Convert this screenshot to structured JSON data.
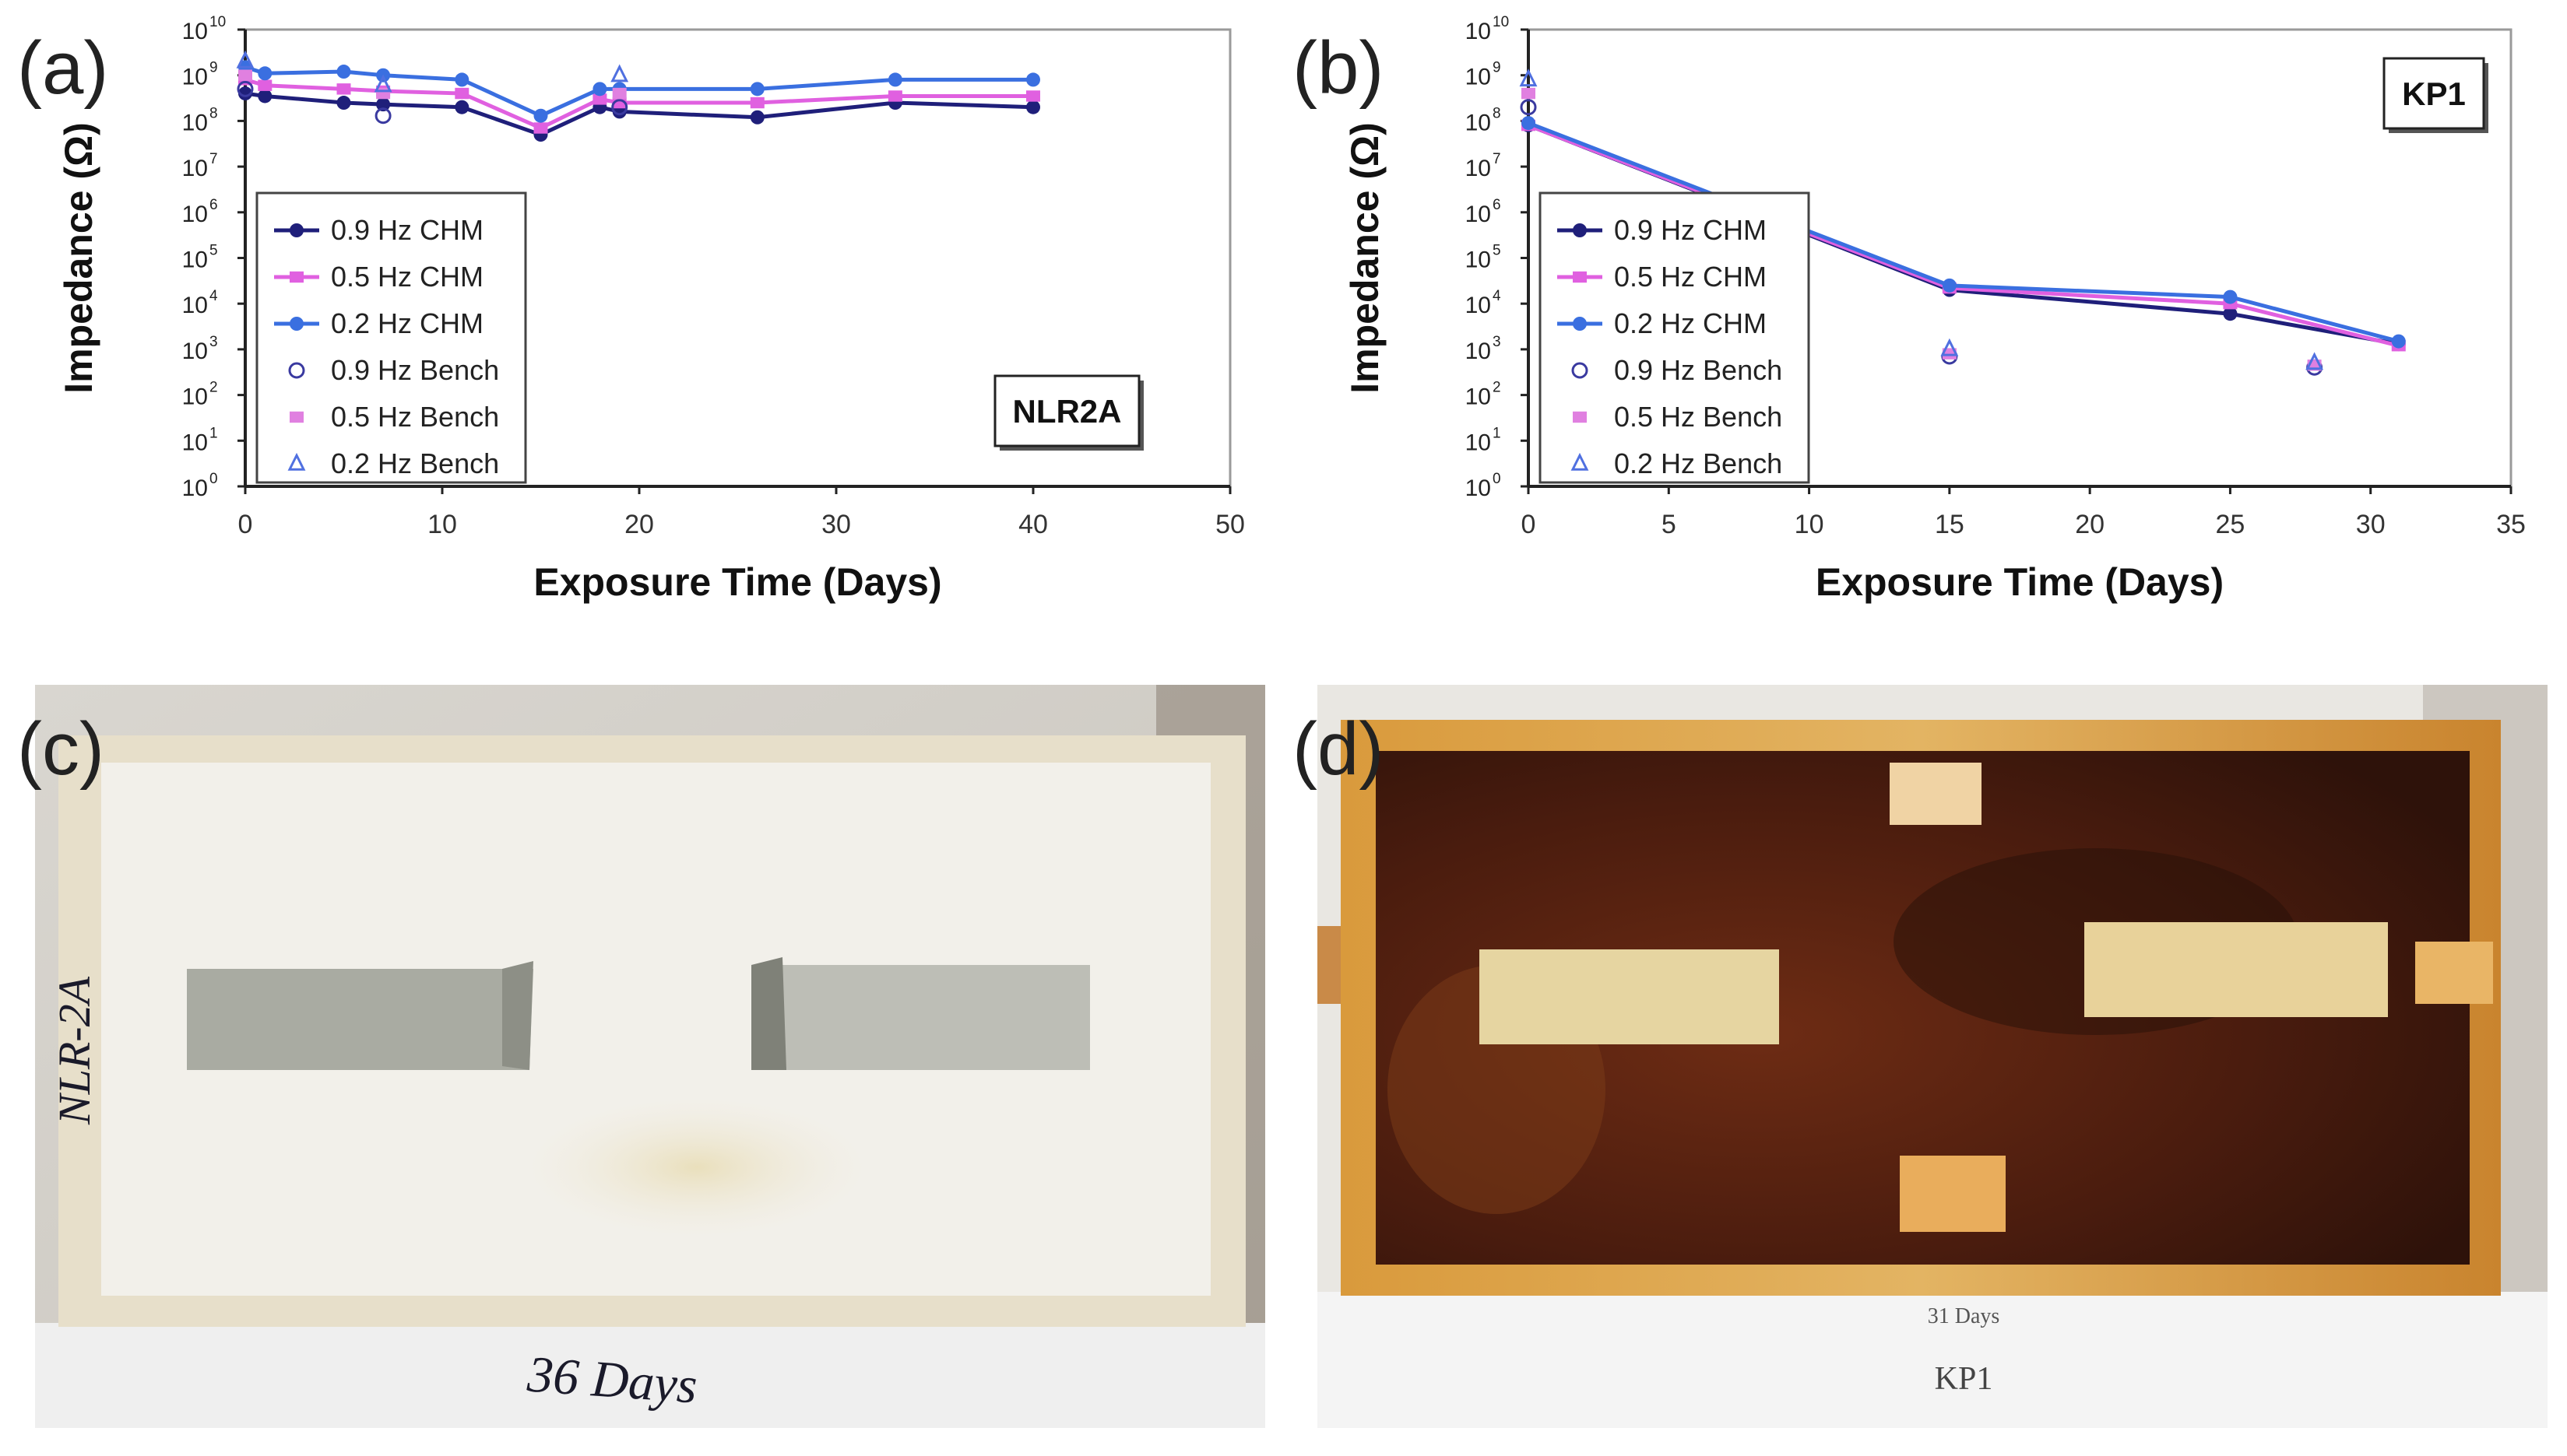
{
  "panels": {
    "a": "(a)",
    "b": "(b)",
    "c": "(c)",
    "d": "(d)"
  },
  "chart_data": [
    {
      "type": "line",
      "panel": "(a)",
      "title": "NLR2A",
      "xlabel": "Exposure Time (Days)",
      "ylabel": "Impedance (Ω)",
      "xlim": [
        0,
        50
      ],
      "xticks": [
        "0",
        "10",
        "20",
        "30",
        "40",
        "50"
      ],
      "ylim_log10": [
        0,
        10
      ],
      "yscale": "log",
      "yticks": [
        "10",
        "10",
        "10",
        "10",
        "10",
        "10",
        "10",
        "10",
        "10",
        "10",
        "10"
      ],
      "ytick_exponents": [
        "0",
        "1",
        "2",
        "3",
        "4",
        "5",
        "6",
        "7",
        "8",
        "9",
        "10"
      ],
      "legend": [
        "0.9 Hz CHM",
        "0.5 Hz CHM",
        "0.2 Hz CHM",
        "0.9 Hz Bench",
        "0.5 Hz Bench",
        "0.2 Hz Bench"
      ],
      "legend_position": "left",
      "series": [
        {
          "name": "0.9 Hz CHM",
          "marker": "dot",
          "color": "#1f1f7a",
          "kind": "line",
          "x": [
            0,
            1,
            5,
            7,
            11,
            15,
            18,
            19,
            26,
            33,
            40
          ],
          "y": [
            400000000.0,
            350000000.0,
            250000000.0,
            230000000.0,
            200000000.0,
            50000000.0,
            200000000.0,
            160000000.0,
            120000000.0,
            250000000.0,
            200000000.0
          ]
        },
        {
          "name": "0.5 Hz CHM",
          "marker": "square",
          "color": "#e060e0",
          "kind": "line",
          "x": [
            0,
            1,
            5,
            7,
            11,
            15,
            18,
            19,
            26,
            33,
            40
          ],
          "y": [
            800000000.0,
            600000000.0,
            500000000.0,
            450000000.0,
            400000000.0,
            70000000.0,
            300000000.0,
            250000000.0,
            250000000.0,
            350000000.0,
            350000000.0
          ]
        },
        {
          "name": "0.2 Hz CHM",
          "marker": "dot",
          "color": "#3a6fe0",
          "kind": "line",
          "x": [
            0,
            1,
            5,
            7,
            11,
            15,
            18,
            19,
            26,
            33,
            40
          ],
          "y": [
            1500000000.0,
            1100000000.0,
            1200000000.0,
            1000000000.0,
            800000000.0,
            130000000.0,
            500000000.0,
            500000000.0,
            500000000.0,
            800000000.0,
            800000000.0
          ]
        },
        {
          "name": "0.9 Hz Bench",
          "marker": "circle",
          "color": "#3a3aa0",
          "kind": "scatter",
          "x": [
            0,
            7,
            19
          ],
          "y": [
            500000000.0,
            130000000.0,
            200000000.0
          ]
        },
        {
          "name": "0.5 Hz Bench",
          "marker": "square",
          "color": "#e080e0",
          "kind": "scatter",
          "x": [
            0,
            7,
            19
          ],
          "y": [
            1000000000.0,
            400000000.0,
            400000000.0
          ]
        },
        {
          "name": "0.2 Hz Bench",
          "marker": "triangle",
          "color": "#5070e0",
          "kind": "scatter",
          "x": [
            0,
            7,
            19
          ],
          "y": [
            2000000000.0,
            600000000.0,
            1000000000.0
          ]
        }
      ]
    },
    {
      "type": "line",
      "panel": "(b)",
      "title": "KP1",
      "xlabel": "Exposure Time (Days)",
      "ylabel": "Impedance (Ω)",
      "xlim": [
        0,
        35
      ],
      "xticks": [
        "0",
        "5",
        "10",
        "15",
        "20",
        "25",
        "30",
        "35"
      ],
      "ylim_log10": [
        0,
        10
      ],
      "yscale": "log",
      "yticks": [
        "10",
        "10",
        "10",
        "10",
        "10",
        "10",
        "10",
        "10",
        "10",
        "10",
        "10"
      ],
      "ytick_exponents": [
        "0",
        "1",
        "2",
        "3",
        "4",
        "5",
        "6",
        "7",
        "8",
        "9",
        "10"
      ],
      "legend": [
        "0.9 Hz CHM",
        "0.5 Hz CHM",
        "0.2 Hz CHM",
        "0.9 Hz Bench",
        "0.5 Hz Bench",
        "0.2 Hz Bench"
      ],
      "legend_position": "left",
      "series": [
        {
          "name": "0.9 Hz CHM",
          "marker": "dot",
          "color": "#1f1f7a",
          "kind": "line",
          "x": [
            0,
            15,
            25,
            31
          ],
          "y": [
            80000000.0,
            20000.0,
            6000.0,
            1300.0
          ]
        },
        {
          "name": "0.5 Hz CHM",
          "marker": "square",
          "color": "#e060e0",
          "kind": "line",
          "x": [
            0,
            15,
            25,
            31
          ],
          "y": [
            80000000.0,
            22000.0,
            10000.0,
            1200.0
          ]
        },
        {
          "name": "0.2 Hz CHM",
          "marker": "dot",
          "color": "#3a6fe0",
          "kind": "line",
          "x": [
            0,
            15,
            25,
            31
          ],
          "y": [
            90000000.0,
            25000.0,
            14000.0,
            1500.0
          ]
        },
        {
          "name": "0.9 Hz Bench",
          "marker": "circle",
          "color": "#3a3aa0",
          "kind": "scatter",
          "x": [
            0,
            15,
            28
          ],
          "y": [
            200000000.0,
            700.0,
            400.0
          ]
        },
        {
          "name": "0.5 Hz Bench",
          "marker": "square",
          "color": "#e080e0",
          "kind": "scatter",
          "x": [
            0,
            15,
            28
          ],
          "y": [
            400000000.0,
            800.0,
            450.0
          ]
        },
        {
          "name": "0.2 Hz Bench",
          "marker": "triangle",
          "color": "#5070e0",
          "kind": "scatter",
          "x": [
            0,
            15,
            28
          ],
          "y": [
            800000000.0,
            1000.0,
            500.0
          ]
        }
      ]
    }
  ],
  "photos": {
    "c": {
      "panel_label": "(c)",
      "handwritten_side": "NLR-2A",
      "handwritten_bottom": "36 Days"
    },
    "d": {
      "panel_label": "(d)",
      "caption_days": "31 Days",
      "caption_name": "KP1"
    }
  },
  "colors": {
    "axis": "#222222",
    "frame": "#9a9a9a",
    "rust": "#5a1e10",
    "coating": "#ece8dc"
  }
}
